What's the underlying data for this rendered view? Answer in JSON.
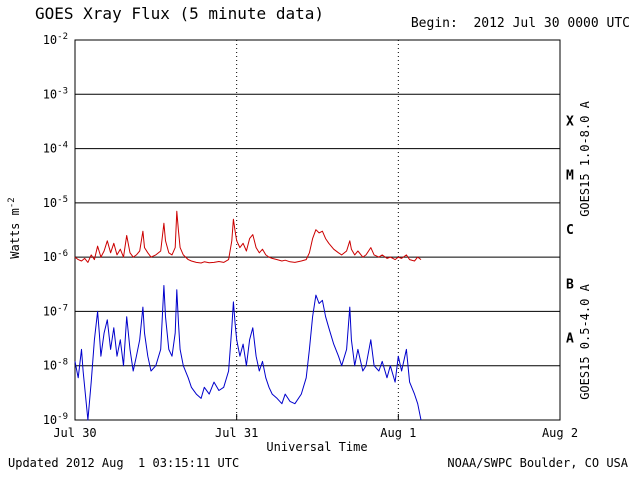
{
  "header": {
    "title": "GOES Xray Flux (5 minute data)",
    "begin_label": "Begin:  2012 Jul 30 0000 UTC"
  },
  "footer": {
    "updated": "Updated 2012 Aug  1 03:15:11 UTC",
    "credit": "NOAA/SWPC Boulder, CO USA"
  },
  "axes": {
    "y_label": "Watts m",
    "y_label_exp": "-2",
    "x_label": "Universal Time"
  },
  "right_labels": {
    "red": "GOES15 1.0-8.0 A",
    "blue": "GOES15 0.5-4.0 A"
  },
  "colors": {
    "red": "#cc0000",
    "blue": "#0000cc",
    "grid": "#000000"
  },
  "chart_data": {
    "type": "line",
    "title": "GOES Xray Flux (5 minute data)",
    "xlabel": "Universal Time",
    "ylabel": "Watts m^-2",
    "y_scale": "log",
    "ylim_exponents": [
      -9,
      -2
    ],
    "x_range_days": [
      0,
      3
    ],
    "x_ticks": [
      {
        "t": 0,
        "label": "Jul 30"
      },
      {
        "t": 1,
        "label": "Jul 31"
      },
      {
        "t": 2,
        "label": "Aug 1"
      },
      {
        "t": 3,
        "label": "Aug 2"
      }
    ],
    "y_tick_exponents": [
      -2,
      -3,
      -4,
      -5,
      -6,
      -7,
      -8,
      -9
    ],
    "flare_classes": [
      {
        "label": "X",
        "log_center": -3.5
      },
      {
        "label": "M",
        "log_center": -4.5
      },
      {
        "label": "C",
        "log_center": -5.5
      },
      {
        "label": "B",
        "log_center": -6.5
      },
      {
        "label": "A",
        "log_center": -7.5
      }
    ],
    "series": [
      {
        "name": "GOES15 1.0-8.0 A",
        "color": "#cc0000",
        "points": [
          [
            0,
            1e-06
          ],
          [
            0.02,
            9e-07
          ],
          [
            0.04,
            8.5e-07
          ],
          [
            0.06,
            9.5e-07
          ],
          [
            0.08,
            8e-07
          ],
          [
            0.1,
            1.1e-06
          ],
          [
            0.12,
            9e-07
          ],
          [
            0.14,
            1.6e-06
          ],
          [
            0.16,
            1e-06
          ],
          [
            0.18,
            1.3e-06
          ],
          [
            0.2,
            2e-06
          ],
          [
            0.22,
            1.2e-06
          ],
          [
            0.24,
            1.8e-06
          ],
          [
            0.26,
            1.1e-06
          ],
          [
            0.28,
            1.4e-06
          ],
          [
            0.3,
            1e-06
          ],
          [
            0.32,
            2.5e-06
          ],
          [
            0.34,
            1.2e-06
          ],
          [
            0.36,
            1e-06
          ],
          [
            0.38,
            1.1e-06
          ],
          [
            0.4,
            1.3e-06
          ],
          [
            0.42,
            3e-06
          ],
          [
            0.43,
            1.5e-06
          ],
          [
            0.45,
            1.2e-06
          ],
          [
            0.47,
            1e-06
          ],
          [
            0.5,
            1.1e-06
          ],
          [
            0.53,
            1.3e-06
          ],
          [
            0.55,
            4.2e-06
          ],
          [
            0.56,
            2e-06
          ],
          [
            0.58,
            1.2e-06
          ],
          [
            0.6,
            1.1e-06
          ],
          [
            0.62,
            1.5e-06
          ],
          [
            0.63,
            7e-06
          ],
          [
            0.64,
            3e-06
          ],
          [
            0.65,
            1.5e-06
          ],
          [
            0.67,
            1.1e-06
          ],
          [
            0.7,
            9e-07
          ],
          [
            0.72,
            8.5e-07
          ],
          [
            0.75,
            8e-07
          ],
          [
            0.78,
            7.8e-07
          ],
          [
            0.8,
            8.2e-07
          ],
          [
            0.83,
            7.9e-07
          ],
          [
            0.86,
            8e-07
          ],
          [
            0.89,
            8.3e-07
          ],
          [
            0.92,
            8e-07
          ],
          [
            0.95,
            9e-07
          ],
          [
            0.97,
            2e-06
          ],
          [
            0.98,
            5e-06
          ],
          [
            0.99,
            3e-06
          ],
          [
            1,
            2e-06
          ],
          [
            1.02,
            1.5e-06
          ],
          [
            1.04,
            1.8e-06
          ],
          [
            1.06,
            1.3e-06
          ],
          [
            1.08,
            2.2e-06
          ],
          [
            1.1,
            2.6e-06
          ],
          [
            1.12,
            1.5e-06
          ],
          [
            1.14,
            1.2e-06
          ],
          [
            1.16,
            1.4e-06
          ],
          [
            1.18,
            1.1e-06
          ],
          [
            1.2,
            1e-06
          ],
          [
            1.22,
            9.5e-07
          ],
          [
            1.25,
            9e-07
          ],
          [
            1.28,
            8.5e-07
          ],
          [
            1.3,
            8.8e-07
          ],
          [
            1.33,
            8.2e-07
          ],
          [
            1.36,
            8e-07
          ],
          [
            1.4,
            8.5e-07
          ],
          [
            1.43,
            9e-07
          ],
          [
            1.45,
            1.2e-06
          ],
          [
            1.47,
            2.2e-06
          ],
          [
            1.49,
            3.2e-06
          ],
          [
            1.51,
            2.8e-06
          ],
          [
            1.53,
            3e-06
          ],
          [
            1.55,
            2.2e-06
          ],
          [
            1.57,
            1.8e-06
          ],
          [
            1.6,
            1.4e-06
          ],
          [
            1.63,
            1.2e-06
          ],
          [
            1.65,
            1.1e-06
          ],
          [
            1.68,
            1.3e-06
          ],
          [
            1.7,
            2e-06
          ],
          [
            1.71,
            1.4e-06
          ],
          [
            1.73,
            1.1e-06
          ],
          [
            1.75,
            1.3e-06
          ],
          [
            1.78,
            1e-06
          ],
          [
            1.8,
            1.1e-06
          ],
          [
            1.83,
            1.5e-06
          ],
          [
            1.85,
            1.1e-06
          ],
          [
            1.88,
            1e-06
          ],
          [
            1.9,
            1.1e-06
          ],
          [
            1.93,
            9.5e-07
          ],
          [
            1.95,
            1e-06
          ],
          [
            1.98,
            9e-07
          ],
          [
            2,
            1e-06
          ],
          [
            2.02,
            9.5e-07
          ],
          [
            2.05,
            1.1e-06
          ],
          [
            2.07,
            9e-07
          ],
          [
            2.1,
            8.5e-07
          ],
          [
            2.12,
            1e-06
          ],
          [
            2.14,
            9e-07
          ]
        ]
      },
      {
        "name": "GOES15 0.5-4.0 A",
        "color": "#0000cc",
        "points": [
          [
            0,
            1.2e-08
          ],
          [
            0.02,
            6e-09
          ],
          [
            0.04,
            2e-08
          ],
          [
            0.05,
            8e-09
          ],
          [
            0.07,
            2e-09
          ],
          [
            0.08,
            1e-09
          ],
          [
            0.1,
            5e-09
          ],
          [
            0.12,
            3e-08
          ],
          [
            0.14,
            1e-07
          ],
          [
            0.15,
            4e-08
          ],
          [
            0.16,
            1.5e-08
          ],
          [
            0.18,
            4e-08
          ],
          [
            0.2,
            7e-08
          ],
          [
            0.22,
            2e-08
          ],
          [
            0.24,
            5e-08
          ],
          [
            0.26,
            1.5e-08
          ],
          [
            0.28,
            3e-08
          ],
          [
            0.3,
            1e-08
          ],
          [
            0.32,
            8e-08
          ],
          [
            0.34,
            2e-08
          ],
          [
            0.36,
            8e-09
          ],
          [
            0.38,
            1.5e-08
          ],
          [
            0.4,
            3e-08
          ],
          [
            0.42,
            1.2e-07
          ],
          [
            0.43,
            4e-08
          ],
          [
            0.45,
            1.5e-08
          ],
          [
            0.47,
            8e-09
          ],
          [
            0.5,
            1e-08
          ],
          [
            0.53,
            2e-08
          ],
          [
            0.55,
            3e-07
          ],
          [
            0.56,
            8e-08
          ],
          [
            0.58,
            2e-08
          ],
          [
            0.6,
            1.5e-08
          ],
          [
            0.62,
            4e-08
          ],
          [
            0.63,
            2.5e-07
          ],
          [
            0.64,
            6e-08
          ],
          [
            0.65,
            2e-08
          ],
          [
            0.67,
            1e-08
          ],
          [
            0.7,
            6e-09
          ],
          [
            0.72,
            4e-09
          ],
          [
            0.75,
            3e-09
          ],
          [
            0.78,
            2.5e-09
          ],
          [
            0.8,
            4e-09
          ],
          [
            0.83,
            3e-09
          ],
          [
            0.86,
            5e-09
          ],
          [
            0.89,
            3.5e-09
          ],
          [
            0.92,
            4e-09
          ],
          [
            0.95,
            8e-09
          ],
          [
            0.97,
            5e-08
          ],
          [
            0.98,
            1.5e-07
          ],
          [
            0.99,
            6e-08
          ],
          [
            1,
            3e-08
          ],
          [
            1.02,
            1.5e-08
          ],
          [
            1.04,
            2.5e-08
          ],
          [
            1.06,
            1e-08
          ],
          [
            1.08,
            3e-08
          ],
          [
            1.1,
            5e-08
          ],
          [
            1.12,
            1.5e-08
          ],
          [
            1.14,
            8e-09
          ],
          [
            1.16,
            1.2e-08
          ],
          [
            1.18,
            6e-09
          ],
          [
            1.2,
            4e-09
          ],
          [
            1.22,
            3e-09
          ],
          [
            1.25,
            2.5e-09
          ],
          [
            1.28,
            2e-09
          ],
          [
            1.3,
            3e-09
          ],
          [
            1.33,
            2.2e-09
          ],
          [
            1.36,
            2e-09
          ],
          [
            1.4,
            3e-09
          ],
          [
            1.43,
            6e-09
          ],
          [
            1.45,
            2e-08
          ],
          [
            1.47,
            8e-08
          ],
          [
            1.49,
            2e-07
          ],
          [
            1.51,
            1.4e-07
          ],
          [
            1.53,
            1.6e-07
          ],
          [
            1.55,
            8e-08
          ],
          [
            1.57,
            5e-08
          ],
          [
            1.6,
            2.5e-08
          ],
          [
            1.63,
            1.5e-08
          ],
          [
            1.65,
            1e-08
          ],
          [
            1.68,
            2e-08
          ],
          [
            1.7,
            1.2e-07
          ],
          [
            1.71,
            3e-08
          ],
          [
            1.73,
            1e-08
          ],
          [
            1.75,
            2e-08
          ],
          [
            1.78,
            8e-09
          ],
          [
            1.8,
            1e-08
          ],
          [
            1.83,
            3e-08
          ],
          [
            1.85,
            1e-08
          ],
          [
            1.88,
            8e-09
          ],
          [
            1.9,
            1.2e-08
          ],
          [
            1.93,
            6e-09
          ],
          [
            1.95,
            1e-08
          ],
          [
            1.98,
            5e-09
          ],
          [
            2,
            1.5e-08
          ],
          [
            2.02,
            8e-09
          ],
          [
            2.05,
            2e-08
          ],
          [
            2.07,
            5e-09
          ],
          [
            2.1,
            3e-09
          ],
          [
            2.12,
            2e-09
          ],
          [
            2.14,
            1e-09
          ]
        ]
      }
    ]
  }
}
